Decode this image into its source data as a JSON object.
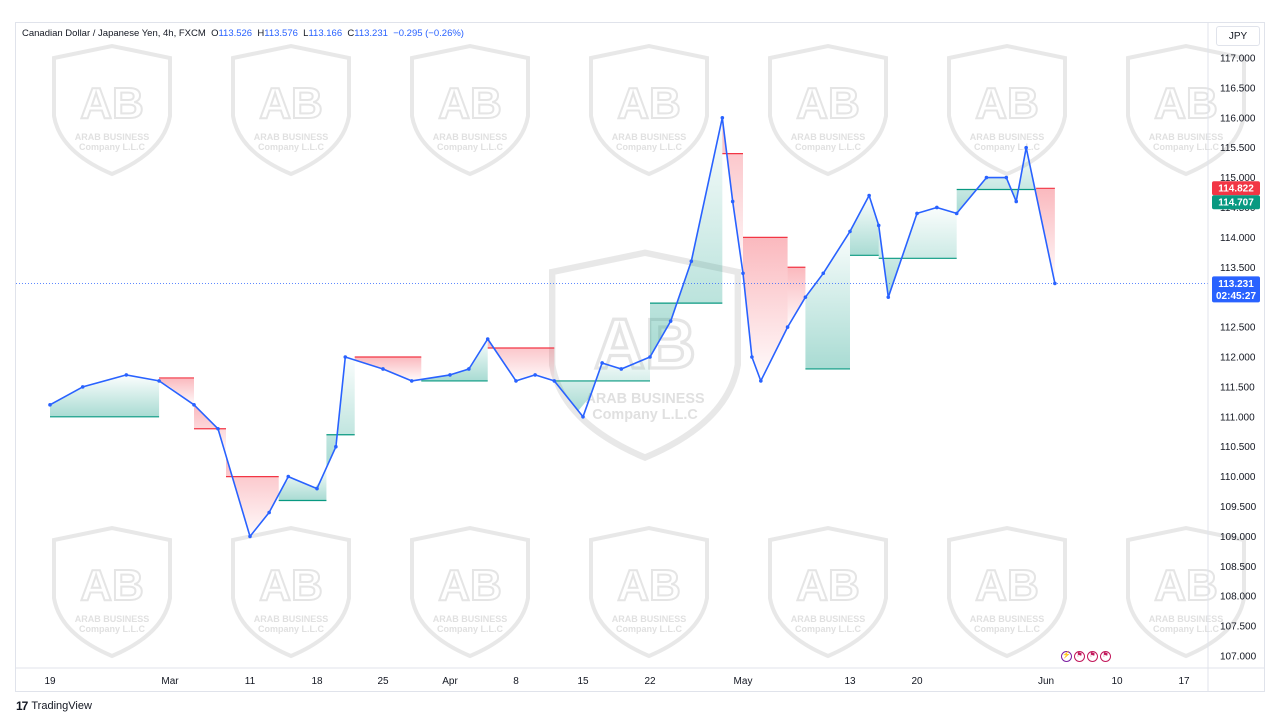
{
  "header": {
    "symbol": "Canadian Dollar / Japanese Yen, 4h, FXCM",
    "open_label": "O",
    "open": "113.526",
    "high_label": "H",
    "high": "113.576",
    "low_label": "L",
    "low": "113.166",
    "close_label": "C",
    "close": "113.231",
    "change": "−0.295 (−0.26%)"
  },
  "currency_button": "JPY",
  "footer": {
    "brand": "TradingView"
  },
  "watermark": {
    "line1": "ARAB BUSINESS",
    "line2": "Company L.L.C"
  },
  "colors": {
    "candle": "#2962ff",
    "band_bull": "#089981",
    "band_bear": "#f23645",
    "price_line": "#2962ff",
    "badge_red": "#f23645",
    "badge_green": "#089981",
    "badge_blue": "#2962ff"
  },
  "badges": {
    "red": "114.822",
    "green": "114.707",
    "price": "113.231",
    "countdown": "02:45:27"
  },
  "events_icons": [
    "lightning-icon",
    "flag-icon",
    "flag-icon",
    "flag-icon"
  ],
  "chart_data": {
    "type": "line",
    "title": "",
    "xlabel": "",
    "ylabel": "",
    "y_axis_side": "right",
    "ylim": [
      106.8,
      117.3
    ],
    "y_ticks": [
      "117.000",
      "116.500",
      "116.000",
      "115.500",
      "115.000",
      "114.500",
      "114.000",
      "113.500",
      "113.000",
      "112.500",
      "112.000",
      "111.500",
      "111.000",
      "110.500",
      "110.000",
      "109.500",
      "109.000",
      "108.500",
      "108.000",
      "107.500",
      "107.000"
    ],
    "x_ticks": [
      "19",
      "Mar",
      "11",
      "18",
      "25",
      "Apr",
      "8",
      "15",
      "22",
      "May",
      "13",
      "20",
      "Jun",
      "10",
      "17"
    ],
    "x": [
      "Feb 19",
      "Feb 22",
      "Feb 26",
      "Feb 29",
      "Mar 4",
      "Mar 7",
      "Mar 11",
      "Mar 13",
      "Mar 15",
      "Mar 18",
      "Mar 20",
      "Mar 21",
      "Mar 25",
      "Mar 28",
      "Apr 1",
      "Apr 3",
      "Apr 5",
      "Apr 8",
      "Apr 10",
      "Apr 12",
      "Apr 15",
      "Apr 17",
      "Apr 19",
      "Apr 22",
      "Apr 24",
      "Apr 26",
      "Apr 29",
      "Apr 30",
      "May 1",
      "May 2",
      "May 3",
      "May 6",
      "May 8",
      "May 10",
      "May 13",
      "May 15",
      "May 16",
      "May 17",
      "May 20",
      "May 22",
      "May 24",
      "May 27",
      "May 29",
      "May 30",
      "May 31",
      "Jun 3"
    ],
    "series": [
      {
        "values": [
          111.2,
          111.5,
          111.7,
          111.6,
          111.2,
          110.8,
          109.0,
          109.4,
          110.0,
          109.8,
          110.5,
          112.0,
          111.8,
          111.6,
          111.7,
          111.8,
          112.3,
          111.6,
          111.7,
          111.6,
          111.0,
          111.9,
          111.8,
          112.0,
          112.6,
          113.6,
          116.0,
          114.6,
          113.4,
          112.0,
          111.6,
          112.5,
          113.0,
          113.4,
          114.1,
          114.7,
          114.2,
          113.0,
          114.4,
          114.5,
          114.4,
          115.0,
          115.0,
          114.6,
          115.5,
          113.23
        ]
      }
    ],
    "band_segments": [
      {
        "trend": "bull",
        "from": "Feb 19",
        "to": "Feb 29",
        "level": 111.0
      },
      {
        "trend": "bear",
        "from": "Feb 29",
        "to": "Mar 4",
        "level": 111.65
      },
      {
        "trend": "bear",
        "from": "Mar 4",
        "to": "Mar 8",
        "level": 110.8
      },
      {
        "trend": "bear",
        "from": "Mar 8",
        "to": "Mar 14",
        "level": 110.0
      },
      {
        "trend": "bull",
        "from": "Mar 14",
        "to": "Mar 19",
        "level": 109.6
      },
      {
        "trend": "bull",
        "from": "Mar 19",
        "to": "Mar 22",
        "level": 110.7
      },
      {
        "trend": "bear",
        "from": "Mar 22",
        "to": "Mar 29",
        "level": 112.0
      },
      {
        "trend": "bull",
        "from": "Mar 29",
        "to": "Apr 5",
        "level": 111.6
      },
      {
        "trend": "bear",
        "from": "Apr 5",
        "to": "Apr 12",
        "level": 112.15
      },
      {
        "trend": "bull",
        "from": "Apr 12",
        "to": "Apr 22",
        "level": 111.6
      },
      {
        "trend": "bull",
        "from": "Apr 22",
        "to": "Apr 29",
        "level": 112.9
      },
      {
        "trend": "bear",
        "from": "Apr 29",
        "to": "May 1",
        "level": 115.4
      },
      {
        "trend": "bear",
        "from": "May 1",
        "to": "May 6",
        "level": 114.0
      },
      {
        "trend": "bear",
        "from": "May 6",
        "to": "May 8",
        "level": 113.5
      },
      {
        "trend": "bull",
        "from": "May 8",
        "to": "May 13",
        "level": 111.8
      },
      {
        "trend": "bull",
        "from": "May 13",
        "to": "May 16",
        "level": 113.7
      },
      {
        "trend": "bull",
        "from": "May 16",
        "to": "May 24",
        "level": 113.65
      },
      {
        "trend": "bull",
        "from": "May 24",
        "to": "Jun 1",
        "level": 114.8
      },
      {
        "trend": "bear",
        "from": "Jun 1",
        "to": "Jun 3",
        "level": 114.82
      }
    ]
  }
}
